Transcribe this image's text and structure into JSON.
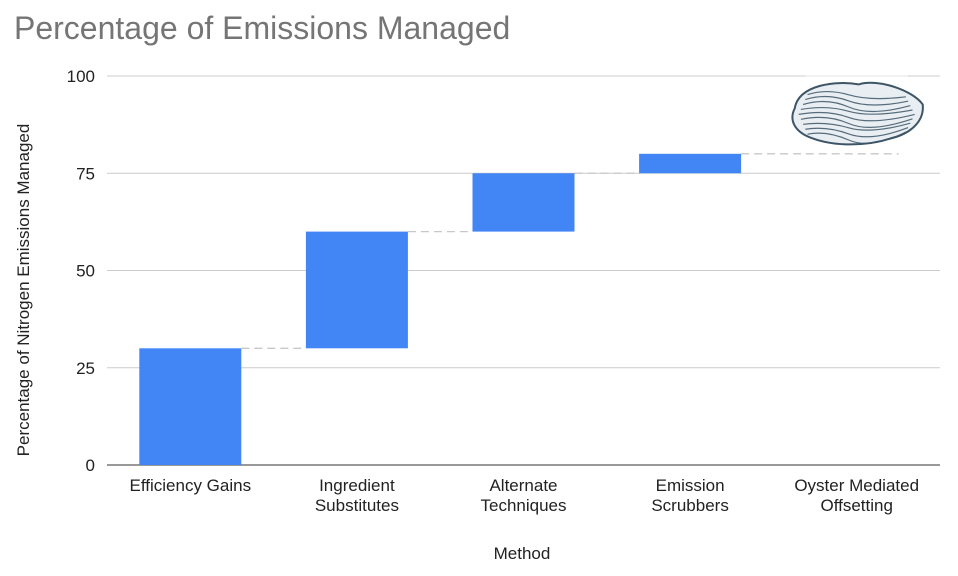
{
  "chart_data": {
    "type": "bar",
    "subtype": "waterfall",
    "title": "Percentage of Emissions Managed",
    "xlabel": "Method",
    "ylabel": "Percentage of Nitrogen Emissions Managed",
    "ylim": [
      0,
      100
    ],
    "yticks": [
      "0",
      "25",
      "50",
      "75",
      "100"
    ],
    "categories": [
      [
        "Efficiency Gains"
      ],
      [
        "Ingredient",
        "Substitutes"
      ],
      [
        "Alternate",
        "Techniques"
      ],
      [
        "Emission",
        "Scrubbers"
      ],
      [
        "Oyster Mediated",
        "Offsetting"
      ]
    ],
    "steps": [
      {
        "start": 0,
        "end": 30
      },
      {
        "start": 30,
        "end": 60
      },
      {
        "start": 60,
        "end": 75
      },
      {
        "start": 75,
        "end": 80
      },
      {
        "start": 80,
        "end": 100
      }
    ],
    "grid": true,
    "colors": {
      "bar": "#4285f4",
      "grid": "#cccccc",
      "connector": "#c8c8c8",
      "oyster": "#3d5566"
    },
    "icons": [
      "oyster-icon"
    ]
  }
}
